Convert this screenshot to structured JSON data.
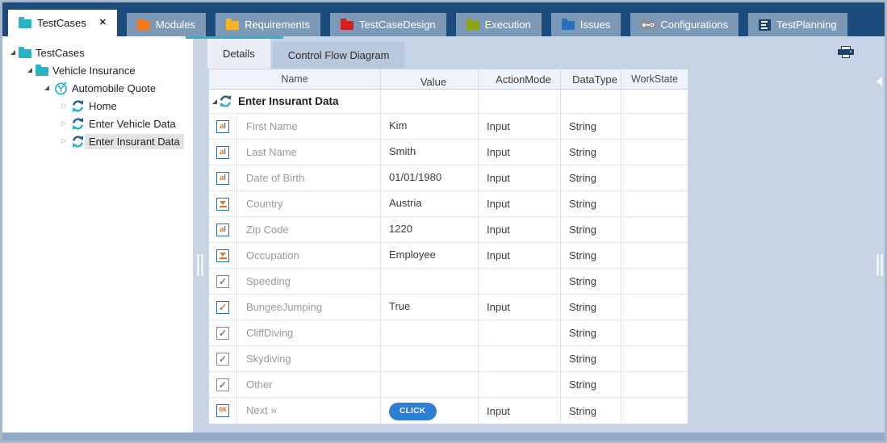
{
  "colors": {
    "navy": "#1c4c7c",
    "teal_accent": "#2ab3c4",
    "content_bg": "#c6d4e5",
    "click_button_blue": "#2e7fd4",
    "attr_icon_orange": "#e8721b",
    "attr_icon_border_blue": "#2e6da4"
  },
  "tabbar": {
    "close_glyph": "✕",
    "overflow_caret": "▼",
    "tabs": [
      {
        "id": "testcases",
        "label": "TestCases",
        "icon": "folder",
        "icon_color": "#2ab3c4",
        "active": true,
        "closable": true
      },
      {
        "id": "modules",
        "label": "Modules",
        "icon": "folder",
        "icon_color": "#f07a1d",
        "active": false,
        "closable": false
      },
      {
        "id": "requirements",
        "label": "Requirements",
        "icon": "folder",
        "icon_color": "#f6b32a",
        "active": false,
        "closable": false
      },
      {
        "id": "testcasedesign",
        "label": "TestCaseDesign",
        "icon": "folder",
        "icon_color": "#d32020",
        "active": false,
        "closable": false
      },
      {
        "id": "execution",
        "label": "Execution",
        "icon": "folder",
        "icon_color": "#93a30d",
        "active": false,
        "closable": false
      },
      {
        "id": "issues",
        "label": "Issues",
        "icon": "folder",
        "icon_color": "#2a70b8",
        "active": false,
        "closable": false
      },
      {
        "id": "configurations",
        "label": "Configurations",
        "icon": "configurations",
        "icon_color": "#8a8f96",
        "active": false,
        "closable": false
      },
      {
        "id": "testplanning",
        "label": "TestPlanning",
        "icon": "testplanning",
        "icon_color": "#17436e",
        "active": false,
        "closable": false
      }
    ]
  },
  "tree": {
    "collapsed_glyph": "▷",
    "items": [
      {
        "label": "TestCases",
        "level": 0,
        "icon": "folder",
        "icon_color": "#2ab3c4",
        "expander": "expanded",
        "selected": false
      },
      {
        "label": "Vehicle Insurance",
        "level": 1,
        "icon": "folder",
        "icon_color": "#2ab3c4",
        "expander": "expanded",
        "selected": false
      },
      {
        "label": "Automobile Quote",
        "level": 2,
        "icon": "testcase",
        "icon_color": "#2ab3c4",
        "expander": "expanded",
        "selected": false
      },
      {
        "label": "Home",
        "level": 3,
        "icon": "refresh",
        "icon_color": "#2ab3c4",
        "expander": "collapsed",
        "selected": false
      },
      {
        "label": "Enter Vehicle Data",
        "level": 3,
        "icon": "refresh",
        "icon_color": "#2ab3c4",
        "expander": "collapsed",
        "selected": false
      },
      {
        "label": "Enter Insurant Data",
        "level": 3,
        "icon": "refresh",
        "icon_color": "#2ab3c4",
        "expander": "collapsed",
        "selected": true
      }
    ]
  },
  "detail_tabs": [
    {
      "label": "Details",
      "active": true
    },
    {
      "label": "Control Flow Diagram",
      "active": false
    }
  ],
  "icons": {
    "ok_label": "OK",
    "checkbox_glyph": "✓"
  },
  "table": {
    "columns": [
      "Name",
      "Value",
      "ActionMode",
      "DataType",
      "WorkState"
    ],
    "parent_row": {
      "name": "Enter Insurant Data",
      "icon": "refresh",
      "expander": "expanded"
    },
    "rows": [
      {
        "icon": "textbox",
        "name": "First Name",
        "value": "Kim",
        "value_kind": "text",
        "action_mode": "Input",
        "data_type": "String",
        "work_state": ""
      },
      {
        "icon": "textbox",
        "name": "Last Name",
        "value": "Smith",
        "value_kind": "text",
        "action_mode": "Input",
        "data_type": "String",
        "work_state": ""
      },
      {
        "icon": "textbox",
        "name": "Date of Birth",
        "value": "01/01/1980",
        "value_kind": "text",
        "action_mode": "Input",
        "data_type": "String",
        "work_state": ""
      },
      {
        "icon": "combobox",
        "name": "Country",
        "value": "Austria",
        "value_kind": "text",
        "action_mode": "Input",
        "data_type": "String",
        "work_state": ""
      },
      {
        "icon": "textbox",
        "name": "Zip Code",
        "value": "1220",
        "value_kind": "text",
        "action_mode": "Input",
        "data_type": "String",
        "work_state": ""
      },
      {
        "icon": "combobox",
        "name": "Occupation",
        "value": "Employee",
        "value_kind": "text",
        "action_mode": "Input",
        "data_type": "String",
        "work_state": ""
      },
      {
        "icon": "checkbox",
        "name": "Speeding",
        "value": "",
        "value_kind": "text",
        "action_mode": "",
        "data_type": "String",
        "work_state": ""
      },
      {
        "icon": "checkbox-checked",
        "name": "BungeeJumping",
        "value": "True",
        "value_kind": "text",
        "action_mode": "Input",
        "data_type": "String",
        "work_state": ""
      },
      {
        "icon": "checkbox",
        "name": "CliffDiving",
        "value": "",
        "value_kind": "text",
        "action_mode": "",
        "data_type": "String",
        "work_state": ""
      },
      {
        "icon": "checkbox",
        "name": "Skydiving",
        "value": "",
        "value_kind": "text",
        "action_mode": "",
        "data_type": "String",
        "work_state": ""
      },
      {
        "icon": "checkbox",
        "name": "Other",
        "value": "",
        "value_kind": "text",
        "action_mode": "",
        "data_type": "String",
        "work_state": ""
      },
      {
        "icon": "ok-button",
        "name": "Next »",
        "value": "CLICK",
        "value_kind": "button",
        "action_mode": "Input",
        "data_type": "String",
        "work_state": ""
      }
    ]
  }
}
